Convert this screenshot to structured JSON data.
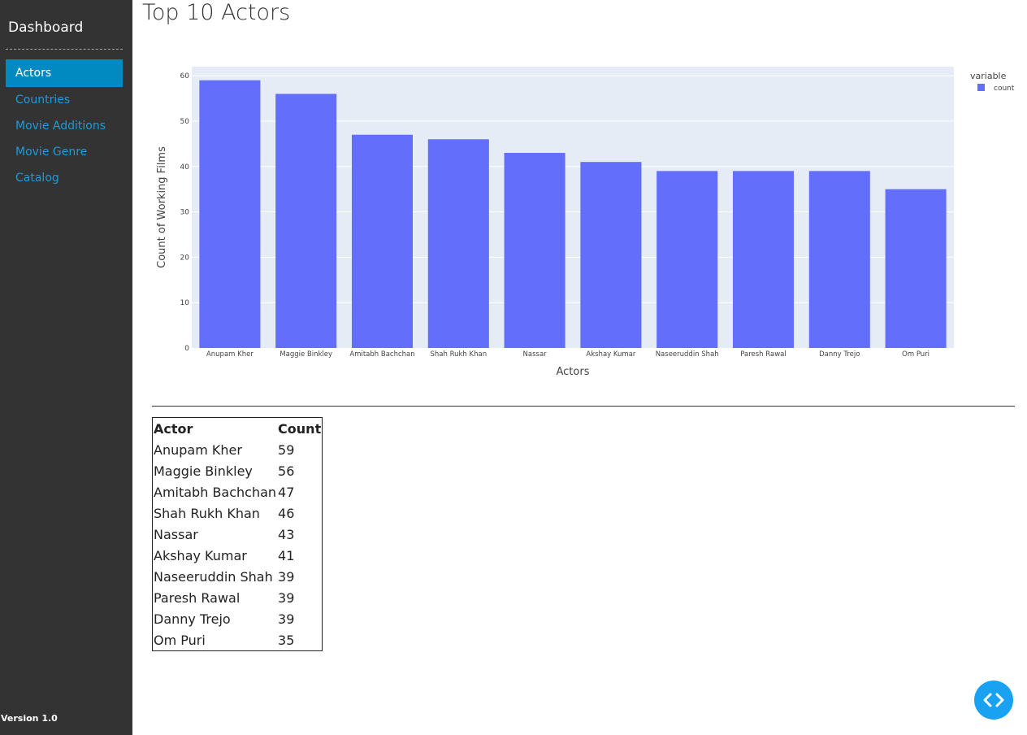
{
  "sidebar": {
    "title": "Dashboard",
    "items": [
      {
        "label": "Actors",
        "active": true
      },
      {
        "label": "Countries"
      },
      {
        "label": "Movie Additions"
      },
      {
        "label": "Movie Genre"
      },
      {
        "label": "Catalog"
      }
    ],
    "version": "Version 1.0"
  },
  "page": {
    "title": "Top 10 Actors"
  },
  "chart_data": {
    "type": "bar",
    "categories": [
      "Anupam Kher",
      "Maggie Binkley",
      "Amitabh Bachchan",
      "Shah Rukh Khan",
      "Nassar",
      "Akshay Kumar",
      "Naseeruddin Shah",
      "Paresh Rawal",
      "Danny Trejo",
      "Om Puri"
    ],
    "series": [
      {
        "name": "count",
        "values": [
          59,
          56,
          47,
          46,
          43,
          41,
          39,
          39,
          39,
          35
        ]
      }
    ],
    "xlabel": "Actors",
    "ylabel": "Count of Working Films",
    "ylim": [
      0,
      62
    ],
    "yticks": [
      0,
      10,
      20,
      30,
      40,
      50,
      60
    ],
    "legend_title": "variable",
    "legend_position": "top-right",
    "grid": true,
    "colors": {
      "bar": "#636efa",
      "plot_bg": "#e5ecf6"
    }
  },
  "table": {
    "headers": [
      "Actor",
      "Count"
    ],
    "rows": [
      [
        "Anupam Kher",
        "59"
      ],
      [
        "Maggie Binkley",
        "56"
      ],
      [
        "Amitabh Bachchan",
        "47"
      ],
      [
        "Shah Rukh Khan",
        "46"
      ],
      [
        "Nassar",
        "43"
      ],
      [
        "Akshay Kumar",
        "41"
      ],
      [
        "Naseeruddin Shah",
        "39"
      ],
      [
        "Paresh Rawal",
        "39"
      ],
      [
        "Danny Trejo",
        "39"
      ],
      [
        "Om Puri",
        "35"
      ]
    ]
  },
  "fab": {
    "icon": "code-chevrons-icon",
    "color": "#1aa2f2"
  }
}
